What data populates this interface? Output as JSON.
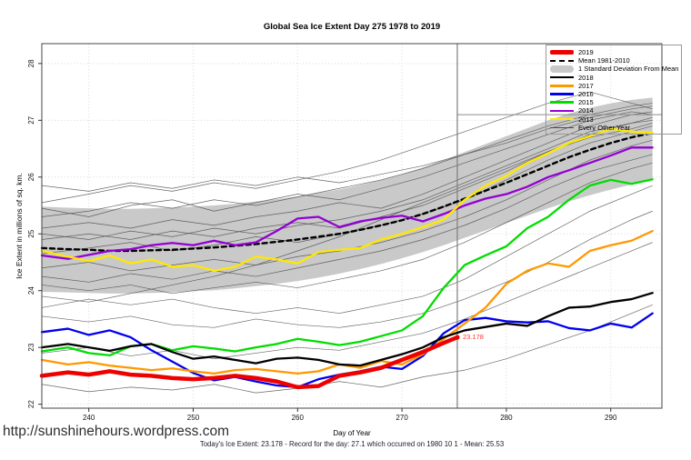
{
  "page": {
    "watermark": "http://sunshinehours.wordpress.com",
    "footer_caption": "Today's Ice Extent: 23.178  - Record for the day: 27.1 which occurred on 1980 10 1  - Mean: 25.53"
  },
  "annotation": {
    "label": "23.178",
    "color": "#FF3333"
  },
  "legend": {
    "items": [
      {
        "label": "2019",
        "style": "thick-line",
        "color": "#EE0000"
      },
      {
        "label": "Mean 1981-2010",
        "style": "dashed",
        "color": "#000000"
      },
      {
        "label": "1 Standard Deviation From Mean",
        "style": "band",
        "color": "#C9C9C9"
      },
      {
        "label": "2018",
        "style": "line",
        "color": "#000000"
      },
      {
        "label": "2017",
        "style": "line",
        "color": "#FF9800"
      },
      {
        "label": "2016",
        "style": "line",
        "color": "#0000EE"
      },
      {
        "label": "2015",
        "style": "line",
        "color": "#00DD00"
      },
      {
        "label": "2014",
        "style": "line",
        "color": "#9400D3"
      },
      {
        "label": "2013",
        "style": "line",
        "color": "#FFE800"
      },
      {
        "label": "Every Other Year",
        "style": "thin-line",
        "color": "#4D4D4D"
      }
    ]
  },
  "chart_data": {
    "type": "line",
    "title": "Global Sea Ice Extent Day 275 1978 to 2019",
    "xlabel": "Day of Year",
    "ylabel": "Ice Extent in millions of sq. km.",
    "xlim": [
      235.5,
      294.9
    ],
    "ylim": [
      21.93,
      28.35
    ],
    "x_ticks": [
      240,
      250,
      260,
      270,
      280,
      290
    ],
    "y_ticks": [
      22,
      23,
      24,
      25,
      26,
      27,
      28
    ],
    "grid": "dotted",
    "grid_color": "#D8D8D8",
    "marker": {
      "day": 275.3,
      "value": 23.178,
      "label": "23.178",
      "line_color": "#7D7D7D"
    },
    "record_level": 27.1,
    "record_line_color": "#8C8C8C",
    "x_main": [
      235.5,
      238,
      240,
      242,
      244,
      246,
      248,
      250,
      252,
      254,
      256,
      258,
      260,
      262,
      264,
      266,
      268,
      270,
      272,
      274,
      276,
      278,
      280,
      282,
      284,
      286,
      288,
      290,
      292,
      294
    ],
    "x_thin": [
      235.5,
      240,
      244,
      248,
      252,
      256,
      260,
      264,
      268,
      272,
      276,
      280,
      284,
      288,
      292,
      294
    ],
    "x_2019": [
      235.5,
      238,
      240,
      242,
      244,
      246,
      248,
      250,
      252,
      254,
      256,
      258,
      260,
      262,
      264,
      266,
      268,
      270,
      272,
      274,
      275.3
    ],
    "band": {
      "name": "1 Standard Deviation From Mean",
      "color": "#C9C9C9",
      "x_key": "x_main",
      "upper": [
        25.48,
        25.46,
        25.45,
        25.44,
        25.44,
        25.45,
        25.46,
        25.48,
        25.5,
        25.53,
        25.57,
        25.61,
        25.66,
        25.72,
        25.78,
        25.86,
        25.95,
        26.05,
        26.17,
        26.3,
        26.44,
        26.58,
        26.72,
        26.86,
        27.0,
        27.12,
        27.22,
        27.3,
        27.36,
        27.4
      ],
      "lower": [
        23.98,
        23.97,
        23.96,
        23.95,
        23.95,
        23.96,
        23.97,
        23.99,
        24.01,
        24.04,
        24.08,
        24.12,
        24.17,
        24.23,
        24.3,
        24.38,
        24.47,
        24.57,
        24.68,
        24.8,
        24.93,
        25.06,
        25.19,
        25.32,
        25.45,
        25.57,
        25.68,
        25.78,
        25.87,
        25.95
      ]
    },
    "series": [
      {
        "name": "Mean 1981-2010",
        "color": "#000000",
        "width": 2.4,
        "dash": "5,4",
        "x_key": "x_main",
        "values": [
          24.75,
          24.73,
          24.72,
          24.7,
          24.7,
          24.71,
          24.72,
          24.74,
          24.76,
          24.79,
          24.82,
          24.86,
          24.9,
          24.95,
          25.0,
          25.07,
          25.15,
          25.24,
          25.35,
          25.48,
          25.62,
          25.76,
          25.9,
          26.05,
          26.2,
          26.35,
          26.48,
          26.6,
          26.7,
          26.78
        ]
      },
      {
        "name": "2014",
        "color": "#9400D3",
        "width": 2.3,
        "dash": null,
        "x_key": "x_main",
        "values": [
          24.62,
          24.56,
          24.63,
          24.7,
          24.73,
          24.8,
          24.84,
          24.8,
          24.88,
          24.8,
          24.85,
          25.05,
          25.27,
          25.3,
          25.12,
          25.22,
          25.28,
          25.32,
          25.22,
          25.35,
          25.5,
          25.62,
          25.7,
          25.83,
          26.0,
          26.12,
          26.25,
          26.38,
          26.52,
          26.52
        ]
      },
      {
        "name": "2013",
        "color": "#FFE800",
        "width": 2.3,
        "dash": null,
        "x_key": "x_main",
        "values": [
          24.7,
          24.6,
          24.52,
          24.62,
          24.48,
          24.55,
          24.42,
          24.45,
          24.35,
          24.42,
          24.6,
          24.55,
          24.48,
          24.68,
          24.72,
          24.75,
          24.9,
          25.0,
          25.12,
          25.25,
          25.6,
          25.85,
          26.02,
          26.25,
          26.42,
          26.6,
          26.72,
          26.85,
          26.8,
          26.78
        ]
      },
      {
        "name": "2015",
        "color": "#00DD00",
        "width": 2.3,
        "dash": null,
        "x_key": "x_main",
        "values": [
          22.93,
          23.0,
          22.9,
          22.86,
          23.02,
          23.06,
          22.95,
          23.02,
          22.98,
          22.93,
          23.0,
          23.06,
          23.15,
          23.1,
          23.04,
          23.1,
          23.2,
          23.3,
          23.55,
          24.05,
          24.45,
          24.62,
          24.78,
          25.1,
          25.3,
          25.6,
          25.85,
          25.95,
          25.88,
          25.96
        ]
      },
      {
        "name": "2016",
        "color": "#0000EE",
        "width": 2.3,
        "dash": null,
        "x_key": "x_main",
        "values": [
          23.27,
          23.33,
          23.22,
          23.3,
          23.18,
          22.95,
          22.75,
          22.55,
          22.42,
          22.48,
          22.4,
          22.33,
          22.3,
          22.44,
          22.52,
          22.58,
          22.66,
          22.62,
          22.85,
          23.25,
          23.48,
          23.52,
          23.46,
          23.44,
          23.46,
          23.34,
          23.3,
          23.42,
          23.35,
          23.6
        ]
      },
      {
        "name": "2017",
        "color": "#FF9800",
        "width": 2.3,
        "dash": null,
        "x_key": "x_main",
        "values": [
          22.78,
          22.7,
          22.74,
          22.68,
          22.64,
          22.6,
          22.63,
          22.58,
          22.54,
          22.6,
          22.62,
          22.58,
          22.54,
          22.58,
          22.7,
          22.64,
          22.76,
          22.7,
          22.88,
          23.15,
          23.42,
          23.7,
          24.12,
          24.35,
          24.48,
          24.42,
          24.7,
          24.8,
          24.88,
          25.05
        ]
      },
      {
        "name": "2018",
        "color": "#000000",
        "width": 2.3,
        "dash": null,
        "x_key": "x_main",
        "values": [
          23.0,
          23.06,
          23.0,
          22.94,
          23.02,
          23.06,
          22.92,
          22.8,
          22.84,
          22.78,
          22.72,
          22.8,
          22.82,
          22.78,
          22.7,
          22.68,
          22.78,
          22.88,
          23.0,
          23.18,
          23.3,
          23.36,
          23.42,
          23.38,
          23.55,
          23.7,
          23.72,
          23.8,
          23.85,
          23.96
        ]
      },
      {
        "name": "2019",
        "color": "#EE0000",
        "width": 4.5,
        "dash": null,
        "x_key": "x_2019",
        "values": [
          22.5,
          22.56,
          22.52,
          22.58,
          22.52,
          22.5,
          22.46,
          22.44,
          22.46,
          22.5,
          22.46,
          22.4,
          22.3,
          22.32,
          22.5,
          22.56,
          22.64,
          22.78,
          22.92,
          23.08,
          23.178
        ]
      }
    ],
    "thin_style": {
      "name": "Every Other Year",
      "color": "#4D4D4D",
      "width": 0.7,
      "opacity": 0.85
    },
    "thin_series": [
      [
        22.35,
        22.22,
        22.3,
        22.25,
        22.35,
        22.2,
        22.28,
        22.4,
        22.3,
        22.48,
        22.6,
        22.8,
        23.05,
        23.3,
        23.6,
        23.75
      ],
      [
        23.55,
        23.45,
        23.55,
        23.4,
        23.35,
        23.5,
        23.4,
        23.35,
        23.45,
        23.6,
        23.85,
        24.15,
        24.5,
        24.9,
        25.25,
        25.4
      ],
      [
        23.7,
        23.85,
        23.75,
        23.85,
        23.7,
        23.6,
        23.7,
        23.6,
        23.75,
        23.9,
        24.2,
        24.6,
        25.0,
        25.4,
        25.7,
        25.85
      ],
      [
        24.1,
        24.0,
        24.1,
        23.95,
        24.05,
        24.15,
        24.05,
        24.2,
        24.35,
        24.55,
        24.85,
        25.2,
        25.55,
        25.9,
        26.15,
        26.25
      ],
      [
        24.4,
        24.5,
        24.35,
        24.45,
        24.55,
        24.45,
        24.6,
        24.7,
        24.85,
        25.05,
        25.3,
        25.6,
        25.95,
        26.3,
        26.55,
        26.65
      ],
      [
        24.65,
        24.75,
        24.85,
        24.7,
        24.8,
        24.95,
        24.85,
        25.0,
        25.15,
        25.35,
        25.6,
        25.95,
        26.3,
        26.6,
        26.8,
        26.9
      ],
      [
        24.9,
        25.0,
        24.9,
        25.05,
        24.95,
        25.1,
        25.2,
        25.1,
        25.3,
        25.5,
        25.8,
        26.1,
        26.45,
        26.75,
        26.95,
        27.05
      ],
      [
        25.1,
        25.2,
        25.1,
        25.25,
        25.15,
        25.3,
        25.4,
        25.55,
        25.45,
        25.7,
        26.0,
        26.3,
        26.6,
        26.9,
        27.1,
        27.15
      ],
      [
        25.3,
        25.4,
        25.55,
        25.45,
        25.6,
        25.5,
        25.65,
        25.8,
        25.95,
        26.15,
        26.4,
        26.65,
        26.9,
        27.1,
        27.25,
        27.3
      ],
      [
        25.55,
        25.7,
        25.85,
        25.75,
        25.9,
        25.8,
        25.95,
        26.1,
        26.3,
        26.55,
        26.8,
        27.05,
        27.3,
        27.5,
        27.3,
        27.2
      ],
      [
        25.45,
        25.3,
        25.5,
        25.6,
        25.4,
        25.55,
        25.7,
        25.6,
        25.8,
        26.0,
        26.25,
        26.5,
        26.75,
        27.0,
        27.15,
        27.1
      ],
      [
        23.9,
        23.8,
        23.95,
        24.1,
        24.25,
        24.45,
        24.7,
        24.95,
        25.25,
        25.55,
        25.85,
        26.15,
        26.45,
        26.7,
        26.85,
        26.95
      ],
      [
        25.85,
        25.75,
        25.9,
        25.8,
        25.95,
        25.85,
        26.0,
        25.9,
        26.05,
        26.2,
        26.4,
        26.6,
        26.85,
        27.05,
        27.2,
        27.25
      ],
      [
        22.9,
        23.0,
        22.85,
        22.95,
        22.8,
        22.9,
        23.0,
        22.95,
        23.1,
        23.25,
        23.5,
        23.8,
        24.1,
        24.4,
        24.7,
        24.85
      ],
      [
        24.25,
        24.15,
        24.3,
        24.2,
        24.35,
        24.25,
        24.4,
        24.55,
        24.7,
        24.9,
        25.15,
        25.45,
        25.8,
        26.1,
        26.3,
        26.4
      ],
      [
        25.0,
        24.9,
        25.05,
        24.95,
        25.1,
        25.0,
        25.15,
        25.25,
        25.4,
        25.6,
        25.9,
        26.2,
        26.5,
        26.8,
        26.95,
        27.0
      ]
    ]
  }
}
